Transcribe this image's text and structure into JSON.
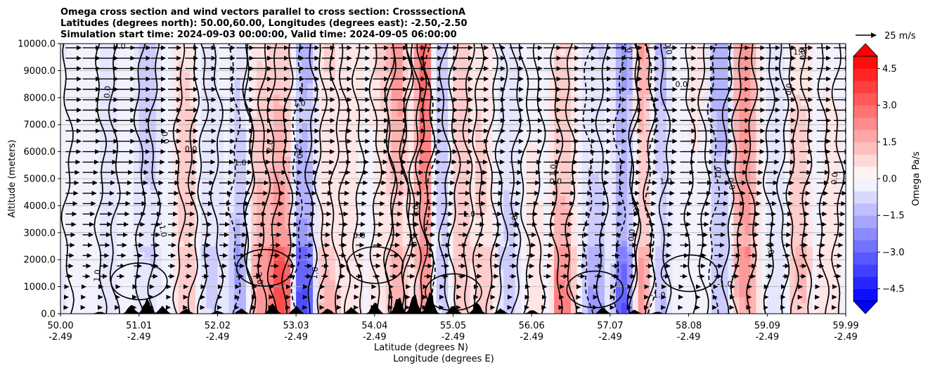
{
  "chart_data": {
    "type": "heatmap",
    "title_lines": [
      "Omega cross section and wind vectors parallel to cross section: CrosssectionA",
      "Latitudes (degrees north): 50.00,60.00, Longitudes (degrees east): -2.50,-2.50",
      "Simulation start time: 2024-09-03 00:00:00, Valid time: 2024-09-05 06:00:00"
    ],
    "ylabel": "Altitude (meters)",
    "xlabel_1": "Latitude (degrees N)",
    "xlabel_2": "Longitude (degrees E)",
    "ylim": [
      0,
      10000
    ],
    "y_ticks": [
      "0.0",
      "1000.0",
      "2000.0",
      "3000.0",
      "4000.0",
      "5000.0",
      "6000.0",
      "7000.0",
      "8000.0",
      "9000.0",
      "10000.0"
    ],
    "x_ticks": [
      {
        "lat": "50.00",
        "lon": "-2.49"
      },
      {
        "lat": "51.01",
        "lon": "-2.49"
      },
      {
        "lat": "52.02",
        "lon": "-2.49"
      },
      {
        "lat": "53.03",
        "lon": "-2.49"
      },
      {
        "lat": "54.04",
        "lon": "-2.49"
      },
      {
        "lat": "55.05",
        "lon": "-2.49"
      },
      {
        "lat": "56.06",
        "lon": "-2.49"
      },
      {
        "lat": "57.07",
        "lon": "-2.49"
      },
      {
        "lat": "58.08",
        "lon": "-2.49"
      },
      {
        "lat": "59.09",
        "lon": "-2.49"
      },
      {
        "lat": "59.99",
        "lon": "-2.49"
      }
    ],
    "colorbar": {
      "label": "Omega Pa/s",
      "range": [
        -5.0,
        5.0
      ],
      "ticks": [
        "4.5",
        "3.0",
        "1.5",
        "0.0",
        "−1.5",
        "−3.0",
        "−4.5"
      ],
      "cmap": "bwr"
    },
    "quiver_key": "25 m/s",
    "omega_columns": [
      {
        "lat": 50.0,
        "omega": -0.3
      },
      {
        "lat": 50.6,
        "omega": -0.5
      },
      {
        "lat": 51.1,
        "omega": -0.8
      },
      {
        "lat": 51.6,
        "omega": 0.8
      },
      {
        "lat": 51.9,
        "omega": -0.6
      },
      {
        "lat": 52.3,
        "omega": -1.2
      },
      {
        "lat": 52.5,
        "omega": 1.5
      },
      {
        "lat": 52.8,
        "omega": 2.4
      },
      {
        "lat": 53.1,
        "omega": -2.5
      },
      {
        "lat": 53.4,
        "omega": 1.2
      },
      {
        "lat": 53.7,
        "omega": 0.6
      },
      {
        "lat": 54.1,
        "omega": 0.8
      },
      {
        "lat": 54.3,
        "omega": 2.2
      },
      {
        "lat": 54.5,
        "omega": -0.8
      },
      {
        "lat": 54.6,
        "omega": 4.8
      },
      {
        "lat": 54.8,
        "omega": -1.2
      },
      {
        "lat": 55.1,
        "omega": 1.0
      },
      {
        "lat": 55.4,
        "omega": 0.7
      },
      {
        "lat": 55.7,
        "omega": -0.7
      },
      {
        "lat": 56.0,
        "omega": 0.3
      },
      {
        "lat": 56.4,
        "omega": 1.5
      },
      {
        "lat": 56.8,
        "omega": -1.3
      },
      {
        "lat": 57.2,
        "omega": -3.0
      },
      {
        "lat": 57.4,
        "omega": 2.8
      },
      {
        "lat": 57.6,
        "omega": -1.6
      },
      {
        "lat": 58.1,
        "omega": 0.3
      },
      {
        "lat": 58.4,
        "omega": -1.3
      },
      {
        "lat": 58.7,
        "omega": 2.0
      },
      {
        "lat": 59.1,
        "omega": -0.4
      },
      {
        "lat": 59.4,
        "omega": 0.9
      },
      {
        "lat": 59.8,
        "omega": 0.4
      }
    ],
    "contour_labels": [
      {
        "text": "0.0",
        "lat": 50.75,
        "alt": 9800
      },
      {
        "text": "0.0",
        "lat": 50.63,
        "alt": 8200
      },
      {
        "text": "0.0",
        "lat": 51.3,
        "alt": 6500
      },
      {
        "text": "0.0",
        "lat": 51.66,
        "alt": 6000
      },
      {
        "text": "-1.0",
        "lat": 51.27,
        "alt": 3100
      },
      {
        "text": "1.0",
        "lat": 50.5,
        "alt": 1400
      },
      {
        "text": "-1.0",
        "lat": 52.27,
        "alt": 5500
      },
      {
        "text": "2.0",
        "lat": 52.7,
        "alt": 6200
      },
      {
        "text": "-2.0",
        "lat": 53.0,
        "alt": 6000
      },
      {
        "text": "1.0",
        "lat": 53.04,
        "alt": 7700
      },
      {
        "text": "2.0",
        "lat": 52.5,
        "alt": 1300
      },
      {
        "text": "1.0",
        "lat": 53.27,
        "alt": 1500
      },
      {
        "text": "0.0",
        "lat": 53.8,
        "alt": 2800
      },
      {
        "text": "1.0",
        "lat": 54.55,
        "alt": 3800
      },
      {
        "text": "0.0",
        "lat": 54.45,
        "alt": 2700
      },
      {
        "text": "1.0",
        "lat": 55.2,
        "alt": 3600
      },
      {
        "text": "0.0",
        "lat": 55.75,
        "alt": 3400
      },
      {
        "text": "1.0",
        "lat": 56.3,
        "alt": 5300
      },
      {
        "text": "0.0",
        "lat": 56.3,
        "alt": 4800
      },
      {
        "text": "0.0",
        "lat": 57.3,
        "alt": 2900
      },
      {
        "text": "-1.0",
        "lat": 57.28,
        "alt": 4000
      },
      {
        "text": "1.0",
        "lat": 57.7,
        "alt": 4800
      },
      {
        "text": "0.0",
        "lat": 57.7,
        "alt": 9800
      },
      {
        "text": "1.0",
        "lat": 57.27,
        "alt": 9600
      },
      {
        "text": "0.0",
        "lat": 57.9,
        "alt": 8400
      },
      {
        "text": "1.0",
        "lat": 58.4,
        "alt": 5200
      },
      {
        "text": "0.0",
        "lat": 58.5,
        "alt": 4800
      },
      {
        "text": "-1.0",
        "lat": 58.45,
        "alt": 1000
      },
      {
        "text": "0.0",
        "lat": 59.0,
        "alt": 2400
      },
      {
        "text": "0.0",
        "lat": 59.3,
        "alt": 8300
      },
      {
        "text": "1.0",
        "lat": 59.4,
        "alt": 9600
      },
      {
        "text": "0.0",
        "lat": 59.88,
        "alt": 5000
      },
      {
        "text": "0.0",
        "lat": 59.4,
        "alt": 9600
      },
      {
        "text": "-1.0",
        "lat": 57.6,
        "alt": 600
      }
    ]
  }
}
